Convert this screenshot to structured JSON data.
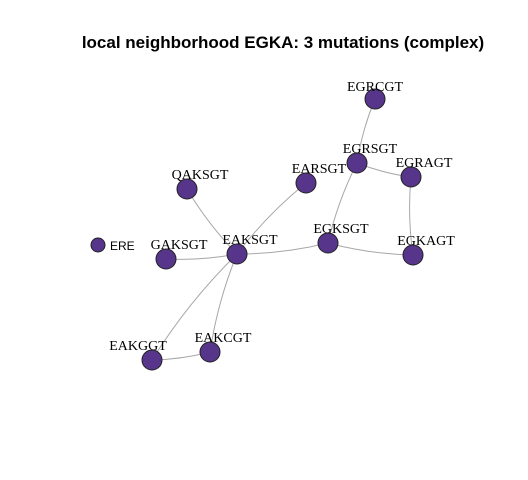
{
  "title": "local neighborhood EGKA: 3 mutations (complex)",
  "node_color": "#56358a",
  "edge_color": "#a8a8a8",
  "legend": {
    "label": "ERE"
  },
  "nodes": [
    {
      "id": "EGRCGT",
      "label": "EGRCGT"
    },
    {
      "id": "EGRSGT",
      "label": "EGRSGT"
    },
    {
      "id": "EGRAGT",
      "label": "EGRAGT"
    },
    {
      "id": "EARSGT",
      "label": "EARSGT"
    },
    {
      "id": "QAKSGT",
      "label": "QAKSGT"
    },
    {
      "id": "GAKSGT",
      "label": "GAKSGT"
    },
    {
      "id": "EAKSGT",
      "label": "EAKSGT"
    },
    {
      "id": "EGKSGT",
      "label": "EGKSGT"
    },
    {
      "id": "EGKAGT",
      "label": "EGKAGT"
    },
    {
      "id": "EAKGGT",
      "label": "EAKGGT"
    },
    {
      "id": "EAKCGT",
      "label": "EAKCGT"
    }
  ],
  "edges": [
    [
      "EGRCGT",
      "EGRSGT"
    ],
    [
      "EGRSGT",
      "EGRAGT"
    ],
    [
      "EGRSGT",
      "EGKSGT"
    ],
    [
      "EGRAGT",
      "EGKAGT"
    ],
    [
      "EARSGT",
      "EAKSGT"
    ],
    [
      "QAKSGT",
      "EAKSGT"
    ],
    [
      "GAKSGT",
      "EAKSGT"
    ],
    [
      "EAKSGT",
      "EGKSGT"
    ],
    [
      "EGKSGT",
      "EGKAGT"
    ],
    [
      "EAKSGT",
      "EAKGGT"
    ],
    [
      "EAKSGT",
      "EAKCGT"
    ],
    [
      "EAKGGT",
      "EAKCGT"
    ]
  ]
}
